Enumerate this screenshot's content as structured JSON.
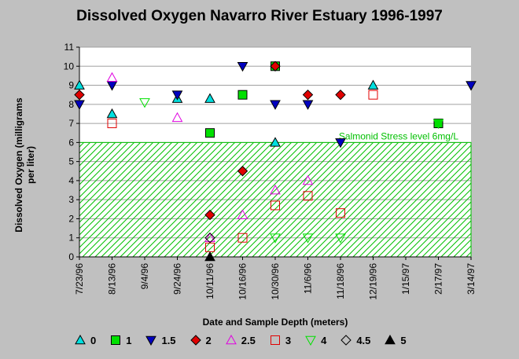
{
  "chart_data": {
    "type": "scatter",
    "title": "Dissolved Oxygen Navarro River Estuary 1996-1997",
    "ylabel": "Dissolved Oxygen (milligrams per liter)",
    "xlabel": "Date and Sample Depth (meters)",
    "ylim": [
      0,
      11
    ],
    "yticks": [
      0,
      1,
      2,
      3,
      4,
      5,
      6,
      7,
      8,
      9,
      10,
      11
    ],
    "categories": [
      "7/23/96",
      "8/13/96",
      "9/4/96",
      "9/24/96",
      "10/11/96",
      "10/16/96",
      "10/30/96",
      "11/6/96",
      "11/18/96",
      "12/19/96",
      "1/15/97",
      "2/17/97",
      "3/14/97"
    ],
    "grid": "horizontal",
    "legend_position": "bottom",
    "threshold": {
      "value": 6,
      "label": "Salmonid Stress level 6mg/L",
      "color": "#00c000"
    },
    "series": [
      {
        "name": "0",
        "marker": "triangle-up",
        "color": "#00e0e0",
        "points": [
          [
            "7/23/96",
            9.0
          ],
          [
            "8/13/96",
            7.5
          ],
          [
            "9/24/96",
            8.3
          ],
          [
            "10/11/96",
            8.3
          ],
          [
            "10/30/96",
            6.0
          ],
          [
            "12/19/96",
            9.0
          ]
        ]
      },
      {
        "name": "1",
        "marker": "square",
        "color": "#00e000",
        "points": [
          [
            "10/11/96",
            6.5
          ],
          [
            "10/16/96",
            8.5
          ],
          [
            "10/30/96",
            10.0
          ],
          [
            "2/17/97",
            7.0
          ]
        ]
      },
      {
        "name": "1.5",
        "marker": "triangle-down",
        "color": "#0000c0",
        "points": [
          [
            "7/23/96",
            8.0
          ],
          [
            "8/13/96",
            9.0
          ],
          [
            "9/24/96",
            8.5
          ],
          [
            "10/16/96",
            10.0
          ],
          [
            "10/30/96",
            8.0
          ],
          [
            "11/6/96",
            8.0
          ],
          [
            "11/18/96",
            6.0
          ],
          [
            "3/14/97",
            9.0
          ]
        ]
      },
      {
        "name": "2",
        "marker": "diamond",
        "color": "#e00000",
        "points": [
          [
            "7/23/96",
            8.5
          ],
          [
            "10/11/96",
            2.2
          ],
          [
            "10/16/96",
            4.5
          ],
          [
            "10/30/96",
            10.0
          ],
          [
            "11/6/96",
            8.5
          ],
          [
            "11/18/96",
            8.5
          ]
        ]
      },
      {
        "name": "2.5",
        "marker": "triangle-up-open",
        "color": "#e000e0",
        "points": [
          [
            "8/13/96",
            9.4
          ],
          [
            "9/24/96",
            7.3
          ],
          [
            "10/11/96",
            1.0
          ],
          [
            "10/16/96",
            2.2
          ],
          [
            "10/30/96",
            3.5
          ],
          [
            "11/6/96",
            4.0
          ]
        ]
      },
      {
        "name": "3",
        "marker": "square-open",
        "color": "#e00000",
        "points": [
          [
            "8/13/96",
            7.0
          ],
          [
            "10/11/96",
            0.5
          ],
          [
            "10/16/96",
            1.0
          ],
          [
            "10/30/96",
            2.7
          ],
          [
            "11/6/96",
            3.2
          ],
          [
            "11/18/96",
            2.3
          ],
          [
            "12/19/96",
            8.5
          ]
        ]
      },
      {
        "name": "4",
        "marker": "triangle-down-open",
        "color": "#00e000",
        "points": [
          [
            "9/4/96",
            8.1
          ],
          [
            "10/30/96",
            1.0
          ],
          [
            "11/6/96",
            1.0
          ],
          [
            "11/18/96",
            1.0
          ],
          [
            "2/17/97",
            7.0
          ]
        ]
      },
      {
        "name": "4.5",
        "marker": "diamond-open",
        "color": "#000000",
        "points": [
          [
            "10/11/96",
            1.0
          ]
        ]
      },
      {
        "name": "5",
        "marker": "triangle-up",
        "color": "#000000",
        "points": [
          [
            "10/11/96",
            0.0
          ]
        ]
      }
    ]
  }
}
